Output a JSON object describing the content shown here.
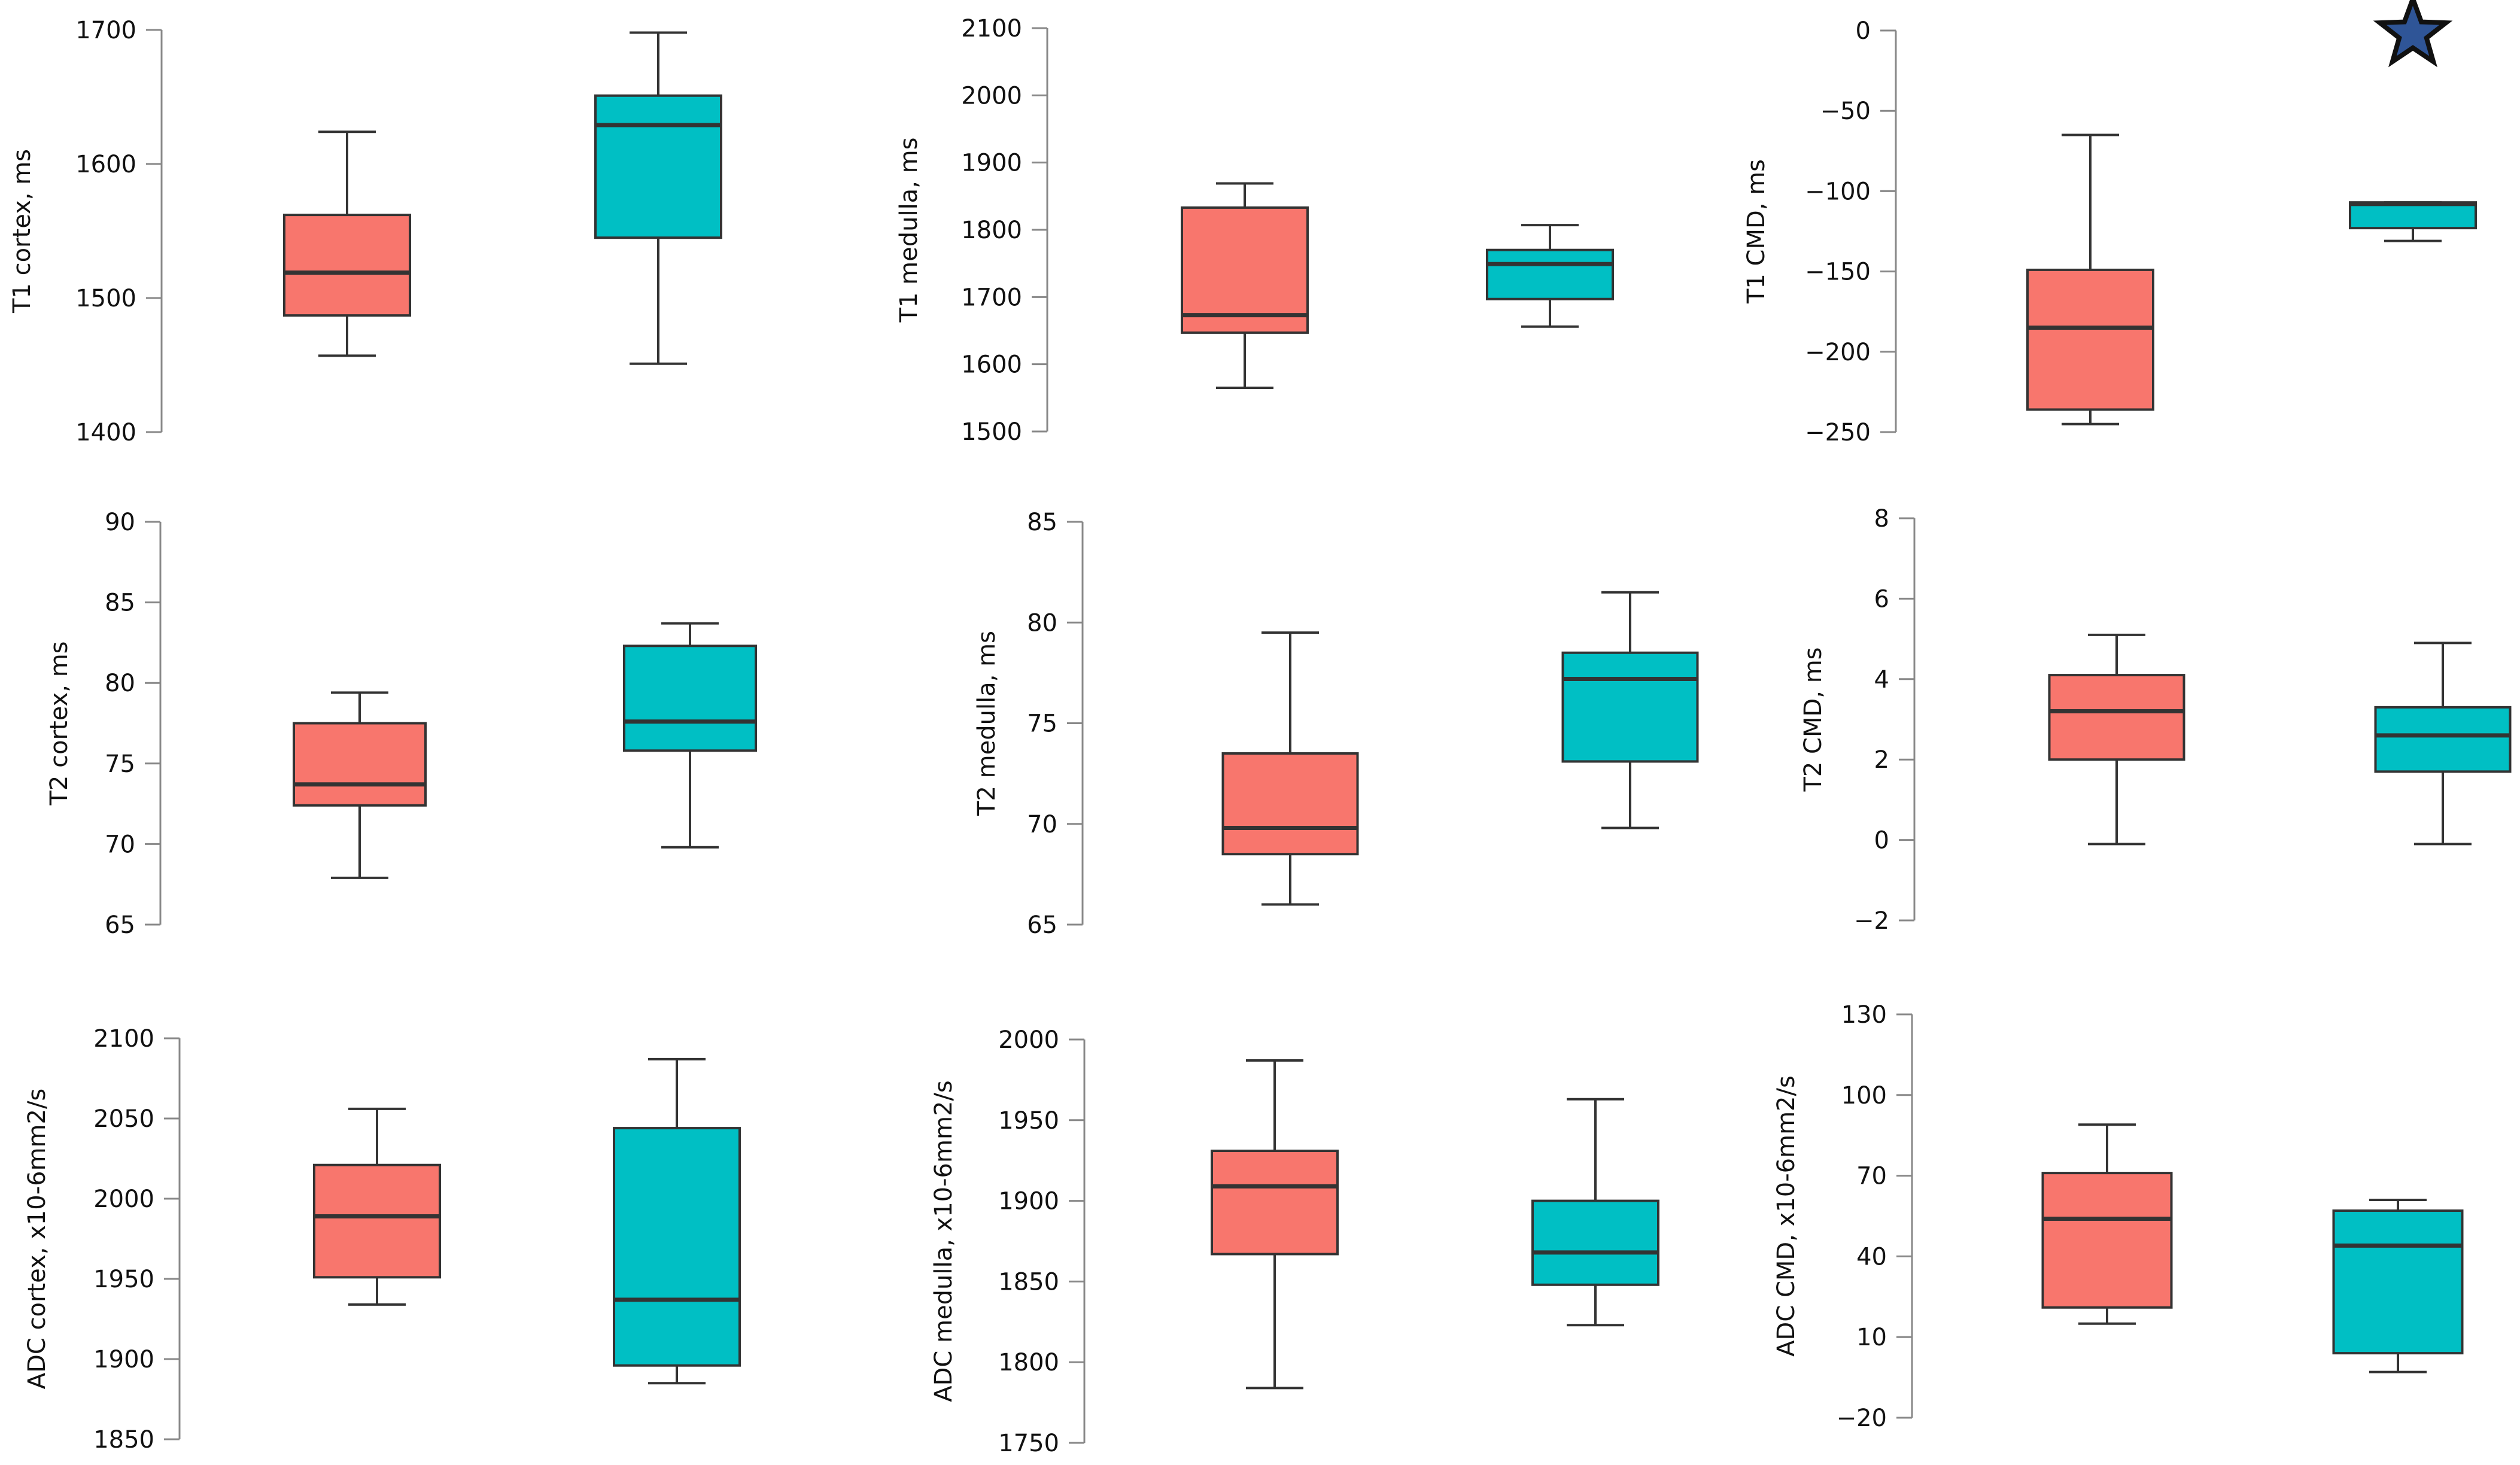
{
  "colors": {
    "group_a": "#F8766D",
    "group_b": "#00BFC4",
    "star": "#2F5597"
  },
  "chart_data": [
    {
      "type": "box",
      "ylabel": "T1 cortex, ms",
      "ylim": [
        1400,
        1700
      ],
      "yticks": [
        1400,
        1500,
        1600,
        1700
      ],
      "series": [
        {
          "name": "group_a",
          "min": 1457,
          "q1": 1487,
          "median": 1519,
          "q3": 1562,
          "max": 1624
        },
        {
          "name": "group_b",
          "min": 1451,
          "q1": 1545,
          "median": 1629,
          "q3": 1651,
          "max": 1698
        }
      ]
    },
    {
      "type": "box",
      "ylabel": "T1 medulla, ms",
      "ylim": [
        1500,
        2100
      ],
      "yticks": [
        1500,
        1600,
        1700,
        1800,
        1900,
        2000,
        2100
      ],
      "series": [
        {
          "name": "group_a",
          "min": 1565,
          "q1": 1647,
          "median": 1673,
          "q3": 1833,
          "max": 1869
        },
        {
          "name": "group_b",
          "min": 1656,
          "q1": 1697,
          "median": 1749,
          "q3": 1770,
          "max": 1807
        }
      ]
    },
    {
      "type": "box",
      "ylabel": "T1 CMD, ms",
      "ylim": [
        -250,
        0
      ],
      "yticks": [
        -250,
        -200,
        -150,
        -100,
        -50,
        0
      ],
      "annotation": "star",
      "series": [
        {
          "name": "group_a",
          "min": -245,
          "q1": -236,
          "median": -185,
          "q3": -149,
          "max": -65
        },
        {
          "name": "group_b",
          "min": -131,
          "q1": -123,
          "median": -108,
          "q3": -107,
          "max": -107
        }
      ]
    },
    {
      "type": "box",
      "ylabel": "T2 cortex, ms",
      "ylim": [
        65,
        90
      ],
      "yticks": [
        65,
        70,
        75,
        80,
        85,
        90
      ],
      "series": [
        {
          "name": "group_a",
          "min": 67.9,
          "q1": 72.4,
          "median": 73.7,
          "q3": 77.5,
          "max": 79.4
        },
        {
          "name": "group_b",
          "min": 69.8,
          "q1": 75.8,
          "median": 77.6,
          "q3": 82.3,
          "max": 83.7
        }
      ]
    },
    {
      "type": "box",
      "ylabel": "T2 medulla, ms",
      "ylim": [
        65,
        85
      ],
      "yticks": [
        65,
        70,
        75,
        80,
        85
      ],
      "series": [
        {
          "name": "group_a",
          "min": 66.0,
          "q1": 68.5,
          "median": 69.8,
          "q3": 73.5,
          "max": 79.5
        },
        {
          "name": "group_b",
          "min": 69.8,
          "q1": 73.1,
          "median": 77.2,
          "q3": 78.5,
          "max": 81.5
        }
      ]
    },
    {
      "type": "box",
      "ylabel": "T2 CMD, ms",
      "ylim": [
        -2,
        8
      ],
      "yticks": [
        -2,
        0,
        2,
        4,
        6,
        8
      ],
      "series": [
        {
          "name": "group_a",
          "min": -0.1,
          "q1": 2.0,
          "median": 3.2,
          "q3": 4.1,
          "max": 5.1
        },
        {
          "name": "group_b",
          "min": -0.1,
          "q1": 1.7,
          "median": 2.6,
          "q3": 3.3,
          "max": 4.9
        }
      ]
    },
    {
      "type": "box",
      "ylabel": "ADC cortex, x10-6mm2/s",
      "ylim": [
        1850,
        2100
      ],
      "yticks": [
        1850,
        1900,
        1950,
        2000,
        2050,
        2100
      ],
      "series": [
        {
          "name": "group_a",
          "min": 1934,
          "q1": 1951,
          "median": 1989,
          "q3": 2021,
          "max": 2056
        },
        {
          "name": "group_b",
          "min": 1885,
          "q1": 1896,
          "median": 1937,
          "q3": 2044,
          "max": 2087
        }
      ]
    },
    {
      "type": "box",
      "ylabel": "ADC medulla, x10-6mm2/s",
      "ylim": [
        1750,
        2000
      ],
      "yticks": [
        1750,
        1800,
        1850,
        1900,
        1950,
        2000
      ],
      "series": [
        {
          "name": "group_a",
          "min": 1784,
          "q1": 1867,
          "median": 1909,
          "q3": 1931,
          "max": 1987
        },
        {
          "name": "group_b",
          "min": 1823,
          "q1": 1848,
          "median": 1868,
          "q3": 1900,
          "max": 1963
        }
      ]
    },
    {
      "type": "box",
      "ylabel": "ADC CMD, x10-6mm2/s",
      "ylim": [
        -20,
        130
      ],
      "yticks": [
        -20,
        10,
        40,
        70,
        100,
        130
      ],
      "series": [
        {
          "name": "group_a",
          "min": 15,
          "q1": 21,
          "median": 54,
          "q3": 71,
          "max": 89
        },
        {
          "name": "group_b",
          "min": -3,
          "q1": 4,
          "median": 44,
          "q3": 57,
          "max": 61
        }
      ]
    }
  ]
}
